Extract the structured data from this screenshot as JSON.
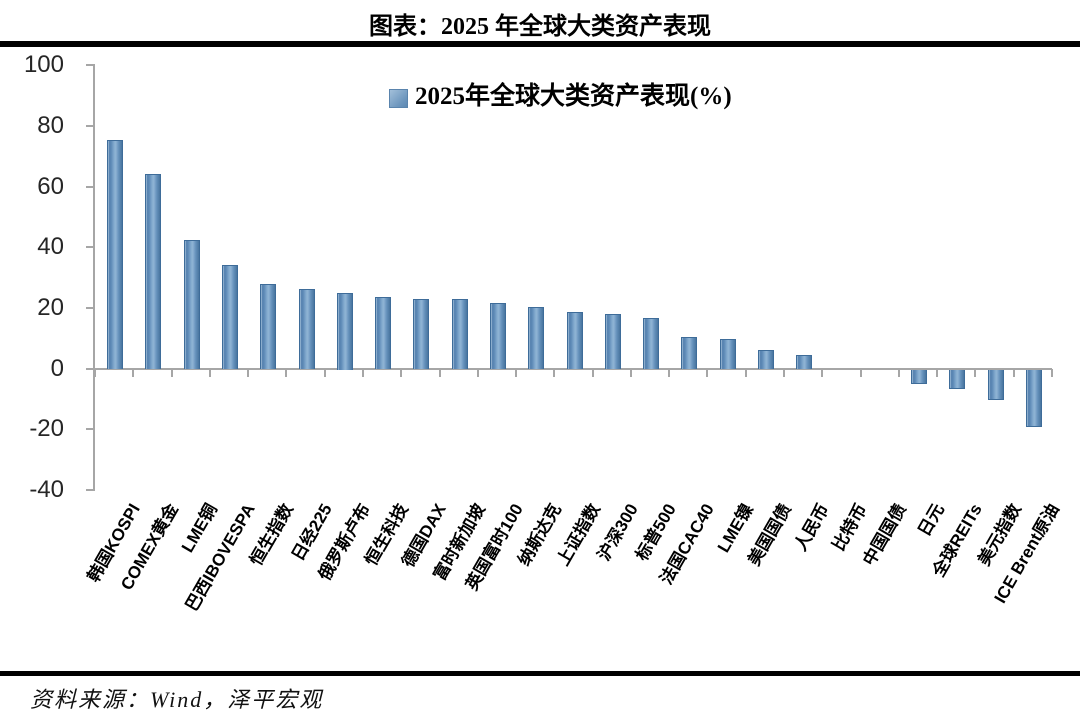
{
  "header": {
    "title": "图表：2025 年全球大类资产表现"
  },
  "legend": {
    "label": "2025年全球大类资产表现(%)",
    "swatch_color": "#6d96bd"
  },
  "footer": {
    "source": "资料来源：Wind，泽平宏观"
  },
  "chart_data": {
    "type": "bar",
    "title": "2025年全球大类资产表现(%)",
    "categories": [
      "韩国KOSPI",
      "COMEX黄金",
      "LME铜",
      "巴西IBOVESPA",
      "恒生指数",
      "日经225",
      "俄罗斯卢布",
      "恒生科技",
      "德国DAX",
      "富时新加坡",
      "英国富时100",
      "纳斯达克",
      "上证指数",
      "沪深300",
      "标普500",
      "法国CAC40",
      "LME镍",
      "美国国债",
      "人民币",
      "比特币",
      "中国国债",
      "日元",
      "全球REITs",
      "美元指数",
      "ICE Brent原油"
    ],
    "values": [
      75.5,
      64.2,
      42.5,
      34.0,
      27.8,
      26.2,
      25.0,
      23.5,
      23.0,
      22.8,
      21.5,
      20.4,
      18.7,
      17.9,
      16.5,
      10.4,
      9.6,
      6.2,
      4.3,
      0.0,
      0.0,
      -4.4,
      -6.2,
      -9.6,
      -18.7
    ],
    "xlabel": "",
    "ylabel": "",
    "ylim": [
      -40,
      100
    ],
    "yticks": [
      100,
      80,
      60,
      40,
      20,
      0,
      -20,
      -40
    ],
    "grid": false,
    "legend_position": "top-center",
    "bar_color": "#6d96bd",
    "axis_color": "#a6a6a6"
  }
}
